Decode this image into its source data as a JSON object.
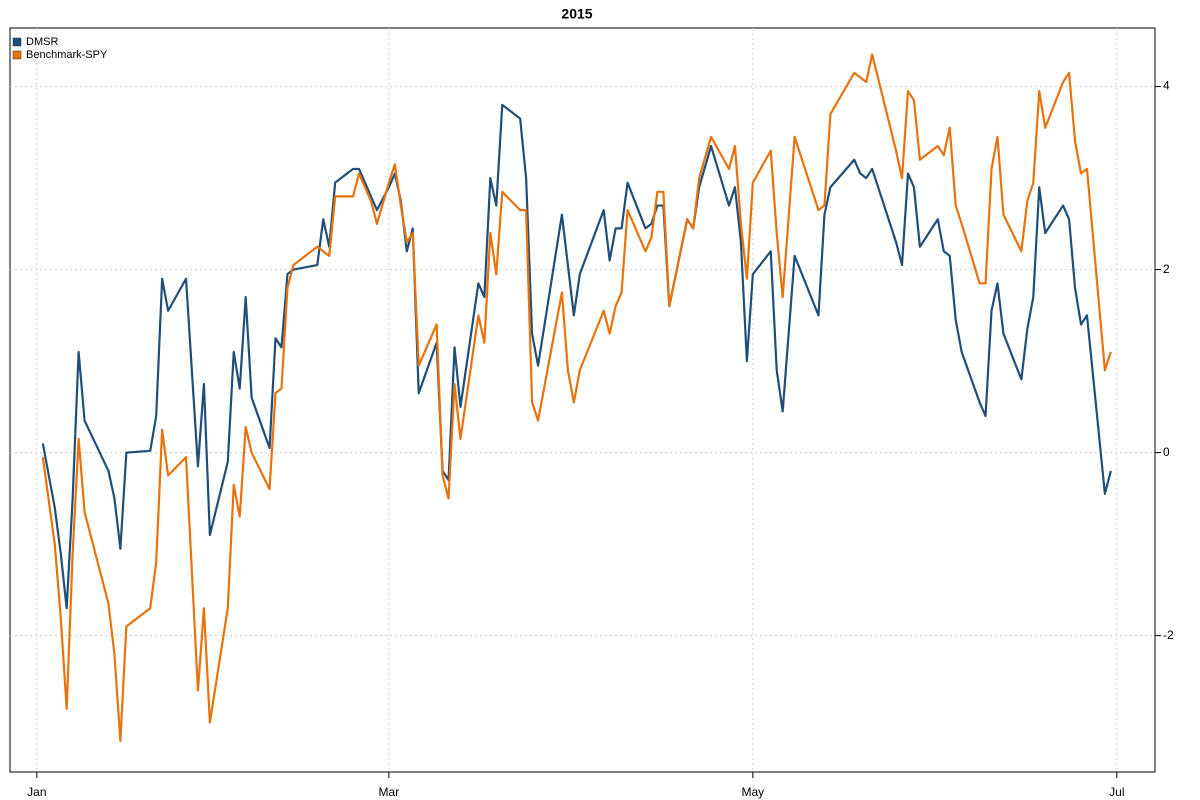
{
  "chart_data": {
    "type": "line",
    "title": "2015",
    "x": [
      1,
      3,
      4,
      5,
      6,
      7,
      8,
      12,
      13,
      14,
      15,
      19,
      20,
      21,
      22,
      25,
      27,
      28,
      29,
      32,
      33,
      34,
      35,
      36,
      39,
      40,
      41,
      42,
      43,
      47,
      48,
      49,
      50,
      53,
      54,
      56,
      57,
      59,
      60,
      61,
      62,
      63,
      64,
      67,
      68,
      69,
      70,
      71,
      74,
      75,
      76,
      77,
      78,
      81,
      82,
      83,
      84,
      88,
      89,
      90,
      91,
      95,
      96,
      97,
      98,
      99,
      102,
      103,
      104,
      105,
      106,
      109,
      110,
      111,
      113,
      116,
      117,
      118,
      119,
      120,
      123,
      124,
      125,
      127,
      131,
      132,
      133,
      137,
      138,
      139,
      140,
      144,
      145,
      146,
      147,
      148,
      151,
      152,
      153,
      154,
      155,
      158,
      159,
      160,
      161,
      162,
      165,
      166,
      167,
      168,
      169,
      172,
      173,
      174,
      175,
      176,
      179,
      180
    ],
    "series": [
      {
        "name": "DMSR",
        "color": "#1f4e79",
        "values": [
          0.1,
          -0.6,
          -1.1,
          -1.7,
          -0.5,
          1.1,
          0.35,
          -0.2,
          -0.5,
          -1.05,
          0.0,
          0.02,
          0.4,
          1.9,
          1.55,
          1.9,
          -0.15,
          0.75,
          -0.9,
          -0.1,
          1.1,
          0.7,
          1.7,
          0.6,
          0.05,
          1.25,
          1.15,
          1.95,
          2.0,
          2.05,
          2.55,
          2.25,
          2.95,
          3.1,
          3.1,
          2.8,
          2.65,
          2.9,
          3.05,
          2.75,
          2.2,
          2.45,
          0.65,
          1.2,
          -0.2,
          -0.3,
          1.15,
          0.5,
          1.85,
          1.7,
          3.0,
          2.7,
          3.8,
          3.65,
          3.0,
          1.3,
          0.95,
          2.6,
          2.05,
          1.5,
          1.95,
          2.65,
          2.1,
          2.45,
          2.45,
          2.95,
          2.45,
          2.5,
          2.7,
          2.7,
          1.6,
          2.55,
          2.45,
          2.9,
          3.35,
          2.7,
          2.9,
          2.3,
          1.0,
          1.95,
          2.2,
          0.9,
          0.45,
          2.15,
          1.5,
          2.6,
          2.9,
          3.2,
          3.05,
          3.0,
          3.1,
          2.3,
          2.05,
          3.05,
          2.9,
          2.25,
          2.55,
          2.2,
          2.15,
          1.45,
          1.1,
          0.55,
          0.4,
          1.55,
          1.85,
          1.3,
          0.8,
          1.35,
          1.7,
          2.9,
          2.4,
          2.7,
          2.55,
          1.8,
          1.4,
          1.5,
          -0.45,
          -0.2
        ]
      },
      {
        "name": "Benchmark-SPY",
        "color": "#e8720c",
        "values": [
          -0.05,
          -1.0,
          -1.8,
          -2.8,
          -1.1,
          0.15,
          -0.65,
          -1.65,
          -2.2,
          -3.15,
          -1.9,
          -1.7,
          -1.2,
          0.25,
          -0.25,
          -0.05,
          -2.6,
          -1.7,
          -2.95,
          -1.7,
          -0.35,
          -0.7,
          0.28,
          0.0,
          -0.4,
          0.65,
          0.7,
          1.8,
          2.05,
          2.25,
          2.2,
          2.15,
          2.8,
          2.8,
          3.05,
          2.75,
          2.5,
          2.95,
          3.15,
          2.7,
          2.3,
          2.4,
          0.95,
          1.4,
          -0.25,
          -0.5,
          0.75,
          0.15,
          1.5,
          1.2,
          2.4,
          1.95,
          2.85,
          2.65,
          2.65,
          0.55,
          0.35,
          1.75,
          0.9,
          0.55,
          0.9,
          1.55,
          1.3,
          1.6,
          1.75,
          2.65,
          2.2,
          2.35,
          2.85,
          2.85,
          1.6,
          2.55,
          2.45,
          3.0,
          3.45,
          3.1,
          3.35,
          2.5,
          1.9,
          2.95,
          3.3,
          2.4,
          1.7,
          3.45,
          2.65,
          2.7,
          3.7,
          4.15,
          4.1,
          4.05,
          4.35,
          3.3,
          3.0,
          3.95,
          3.85,
          3.2,
          3.35,
          3.25,
          3.55,
          2.7,
          2.5,
          1.85,
          1.85,
          3.1,
          3.45,
          2.6,
          2.2,
          2.75,
          2.95,
          3.95,
          3.55,
          4.05,
          4.15,
          3.4,
          3.05,
          3.1,
          0.9,
          1.1
        ]
      }
    ],
    "xlim": [
      -4.5,
      187.4
    ],
    "xticks": [
      {
        "value": 0,
        "label": "Jan"
      },
      {
        "value": 59,
        "label": "Mar"
      },
      {
        "value": 120,
        "label": "May"
      },
      {
        "value": 181,
        "label": "Jul"
      }
    ],
    "ylim": [
      -3.49,
      4.64
    ],
    "yticks": [
      -2,
      0,
      2,
      4
    ],
    "grid": true,
    "legend": "topleft"
  }
}
